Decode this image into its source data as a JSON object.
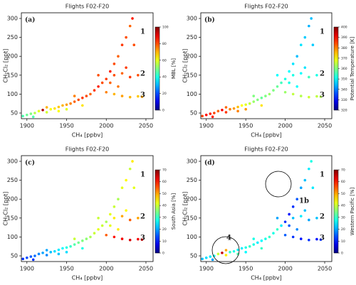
{
  "chart_data": [
    {
      "type": "scatter",
      "title": "Flights F02-F20",
      "panel_label": "(a)",
      "xlabel": "CH₄ [ppbv]",
      "ylabel": "CH₂Cl₂ [ppt]",
      "annotations": [
        "1",
        "2",
        "3"
      ],
      "x": [
        1895,
        1900,
        1905,
        1910,
        1915,
        1920,
        1925,
        1930,
        1935,
        1940,
        1945,
        1950,
        1955,
        1960,
        1965,
        1970,
        1975,
        1980,
        1985,
        1990,
        1995,
        2000,
        2005,
        2010,
        2015,
        2020,
        2025,
        2030,
        2033,
        2000,
        2010,
        2020,
        2030,
        2040,
        2045,
        2010,
        2020,
        2030,
        2040,
        1960,
        1970,
        1950,
        1908,
        1925,
        1940,
        1990,
        2005,
        2015,
        2025,
        2035
      ],
      "y": [
        42,
        45,
        48,
        50,
        55,
        58,
        52,
        60,
        62,
        66,
        70,
        72,
        75,
        80,
        85,
        90,
        95,
        100,
        110,
        120,
        130,
        140,
        160,
        180,
        200,
        230,
        250,
        280,
        300,
        105,
        100,
        95,
        92,
        94,
        93,
        150,
        155,
        145,
        150,
        95,
        70,
        60,
        40,
        65,
        55,
        150,
        130,
        120,
        170,
        230
      ],
      "c": [
        45,
        48,
        50,
        55,
        60,
        95,
        58,
        62,
        65,
        68,
        70,
        72,
        75,
        78,
        80,
        82,
        80,
        78,
        82,
        85,
        80,
        82,
        85,
        80,
        78,
        82,
        80,
        78,
        85,
        75,
        70,
        72,
        70,
        68,
        72,
        80,
        78,
        82,
        80,
        75,
        65,
        60,
        45,
        70,
        62,
        80,
        78,
        76,
        82,
        80
      ],
      "xlim": [
        1893,
        2059
      ],
      "xticks": [
        1900,
        1950,
        2000,
        2050
      ],
      "ylim": [
        35,
        315
      ],
      "yticks": [
        50,
        100,
        150,
        200,
        250,
        300
      ],
      "colorbar": {
        "label": "MBL [%]",
        "lim": [
          0,
          100
        ],
        "ticks": [
          0,
          20,
          40,
          60,
          80,
          100
        ]
      }
    },
    {
      "type": "scatter",
      "title": "Flights F02-F20",
      "panel_label": "(b)",
      "xlabel": "CH₄ [ppbv]",
      "ylabel": "CH₂Cl₂ [ppt]",
      "annotations": [
        "1",
        "2",
        "3"
      ],
      "x": [
        1895,
        1900,
        1905,
        1910,
        1915,
        1920,
        1925,
        1930,
        1935,
        1940,
        1945,
        1950,
        1955,
        1960,
        1965,
        1970,
        1975,
        1980,
        1985,
        1990,
        1995,
        2000,
        2005,
        2010,
        2015,
        2020,
        2025,
        2030,
        2033,
        2000,
        2010,
        2020,
        2030,
        2040,
        2045,
        2010,
        2020,
        2030,
        2040,
        1960,
        1970,
        1950,
        1908,
        1925,
        1940,
        1990,
        2005,
        2015,
        2025,
        2035
      ],
      "y": [
        42,
        45,
        48,
        50,
        55,
        58,
        52,
        60,
        62,
        66,
        70,
        72,
        75,
        80,
        85,
        90,
        95,
        100,
        110,
        120,
        130,
        140,
        160,
        180,
        200,
        230,
        250,
        280,
        300,
        105,
        100,
        95,
        92,
        94,
        93,
        150,
        155,
        145,
        150,
        95,
        70,
        60,
        40,
        65,
        55,
        150,
        130,
        120,
        170,
        230
      ],
      "c": [
        385,
        390,
        388,
        385,
        382,
        390,
        386,
        380,
        378,
        375,
        370,
        368,
        365,
        362,
        360,
        358,
        360,
        362,
        360,
        358,
        355,
        352,
        350,
        348,
        345,
        348,
        346,
        344,
        345,
        362,
        365,
        364,
        366,
        365,
        364,
        352,
        350,
        355,
        352,
        360,
        372,
        378,
        388,
        382,
        380,
        350,
        352,
        350,
        348,
        346
      ],
      "xlim": [
        1893,
        2059
      ],
      "xticks": [
        1900,
        1950,
        2000,
        2050
      ],
      "ylim": [
        35,
        315
      ],
      "yticks": [
        50,
        100,
        150,
        200,
        250,
        300
      ],
      "colorbar": {
        "label": "Potential Temperature [K]",
        "lim": [
          320,
          400
        ],
        "ticks": [
          320,
          330,
          340,
          350,
          360,
          370,
          380,
          390,
          400
        ]
      }
    },
    {
      "type": "scatter",
      "title": "Flights F02-F20",
      "panel_label": "(c)",
      "xlabel": "CH₄ [ppbv]",
      "ylabel": "CH₂Cl₂ [ppt]",
      "annotations": [
        "1",
        "2",
        "3"
      ],
      "x": [
        1895,
        1900,
        1905,
        1910,
        1915,
        1920,
        1925,
        1930,
        1935,
        1940,
        1945,
        1950,
        1955,
        1960,
        1965,
        1970,
        1975,
        1980,
        1985,
        1990,
        1995,
        2000,
        2005,
        2010,
        2015,
        2020,
        2025,
        2030,
        2033,
        2000,
        2010,
        2020,
        2030,
        2040,
        2045,
        2010,
        2020,
        2030,
        2040,
        1960,
        1970,
        1950,
        1908,
        1925,
        1940,
        1990,
        2005,
        2015,
        2025,
        2035
      ],
      "y": [
        42,
        45,
        48,
        50,
        55,
        58,
        52,
        60,
        62,
        66,
        70,
        72,
        75,
        80,
        85,
        90,
        95,
        100,
        110,
        120,
        130,
        140,
        160,
        180,
        200,
        230,
        250,
        280,
        300,
        105,
        100,
        95,
        92,
        94,
        93,
        150,
        155,
        145,
        150,
        95,
        70,
        60,
        40,
        65,
        55,
        150,
        130,
        120,
        170,
        230
      ],
      "c": [
        12,
        14,
        15,
        16,
        18,
        20,
        18,
        22,
        24,
        25,
        26,
        28,
        30,
        32,
        34,
        35,
        36,
        38,
        40,
        42,
        40,
        38,
        42,
        40,
        38,
        42,
        44,
        40,
        45,
        55,
        60,
        62,
        64,
        62,
        65,
        45,
        50,
        55,
        50,
        40,
        28,
        24,
        12,
        20,
        22,
        40,
        42,
        45,
        44,
        42
      ],
      "xlim": [
        1893,
        2059
      ],
      "xticks": [
        1900,
        1950,
        2000,
        2050
      ],
      "ylim": [
        35,
        315
      ],
      "yticks": [
        50,
        100,
        150,
        200,
        250,
        300
      ],
      "colorbar": {
        "label": "South Asia [%]",
        "lim": [
          0,
          70
        ],
        "ticks": [
          0,
          10,
          20,
          30,
          40,
          50,
          60,
          70
        ]
      }
    },
    {
      "type": "scatter",
      "title": "Flights F02-F20",
      "panel_label": "(d)",
      "xlabel": "CH₄ [ppbv]",
      "ylabel": "CH₂Cl₂ [ppt]",
      "annotations": [
        "1",
        "2",
        "3",
        "1b",
        "4"
      ],
      "x": [
        1895,
        1900,
        1905,
        1910,
        1915,
        1920,
        1925,
        1930,
        1935,
        1940,
        1945,
        1950,
        1955,
        1960,
        1965,
        1970,
        1975,
        1980,
        1985,
        1990,
        1995,
        2000,
        2005,
        2010,
        2015,
        2020,
        2025,
        2030,
        2033,
        2000,
        2010,
        2020,
        2030,
        2040,
        2045,
        2010,
        2020,
        2030,
        2040,
        1960,
        1970,
        1950,
        1908,
        1925,
        1940,
        1990,
        2005,
        2015,
        2025,
        2035
      ],
      "y": [
        42,
        45,
        48,
        50,
        55,
        58,
        52,
        60,
        62,
        66,
        70,
        72,
        75,
        80,
        85,
        90,
        95,
        100,
        110,
        120,
        130,
        140,
        160,
        180,
        200,
        230,
        250,
        280,
        300,
        105,
        100,
        95,
        92,
        94,
        93,
        150,
        155,
        145,
        150,
        95,
        70,
        60,
        40,
        65,
        55,
        150,
        130,
        120,
        170,
        230
      ],
      "c": [
        22,
        24,
        25,
        28,
        40,
        65,
        45,
        30,
        28,
        26,
        25,
        28,
        30,
        28,
        25,
        26,
        28,
        30,
        28,
        30,
        25,
        12,
        10,
        12,
        15,
        20,
        22,
        25,
        28,
        15,
        12,
        10,
        12,
        10,
        12,
        22,
        25,
        20,
        22,
        28,
        30,
        26,
        20,
        50,
        32,
        20,
        15,
        18,
        22,
        25
      ],
      "xlim": [
        1893,
        2059
      ],
      "xticks": [
        1900,
        1950,
        2000,
        2050
      ],
      "ylim": [
        35,
        315
      ],
      "yticks": [
        50,
        100,
        150,
        200,
        250,
        300
      ],
      "colorbar": {
        "label": "Western Pacific [%]",
        "lim": [
          0,
          70
        ],
        "ticks": [
          0,
          10,
          20,
          30,
          40,
          50,
          60,
          70
        ]
      }
    }
  ]
}
